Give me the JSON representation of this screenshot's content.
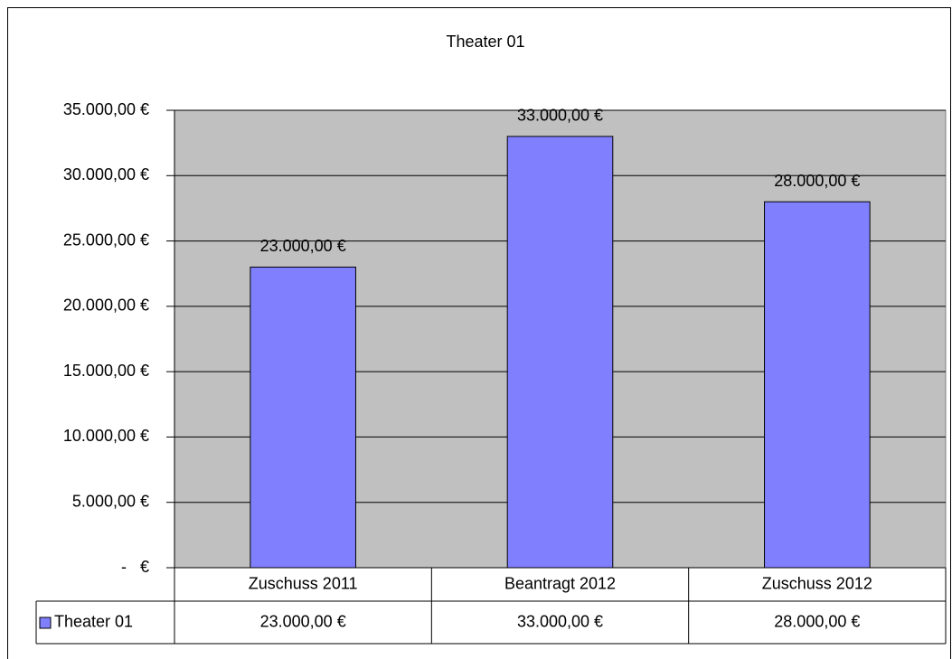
{
  "chart_data": {
    "type": "bar",
    "title": "Theater 01",
    "categories": [
      "Zuschuss 2011",
      "Beantragt 2012",
      "Zuschuss 2012"
    ],
    "series": [
      {
        "name": "Theater 01",
        "color": "#8080ff",
        "values": [
          23000,
          33000,
          28000
        ],
        "value_labels": [
          "23.000,00 €",
          "33.000,00 €",
          "28.000,00 €"
        ]
      }
    ],
    "ylim": [
      0,
      35000
    ],
    "yticks": [
      {
        "value": 0,
        "label": "-   €"
      },
      {
        "value": 5000,
        "label": "5.000,00 €"
      },
      {
        "value": 10000,
        "label": "10.000,00 €"
      },
      {
        "value": 15000,
        "label": "15.000,00 €"
      },
      {
        "value": 20000,
        "label": "20.000,00 €"
      },
      {
        "value": 25000,
        "label": "25.000,00 €"
      },
      {
        "value": 30000,
        "label": "30.000,00 €"
      },
      {
        "value": 35000,
        "label": "35.000,00 €"
      }
    ],
    "grid": true,
    "plot_background": "#c0c0c0"
  }
}
